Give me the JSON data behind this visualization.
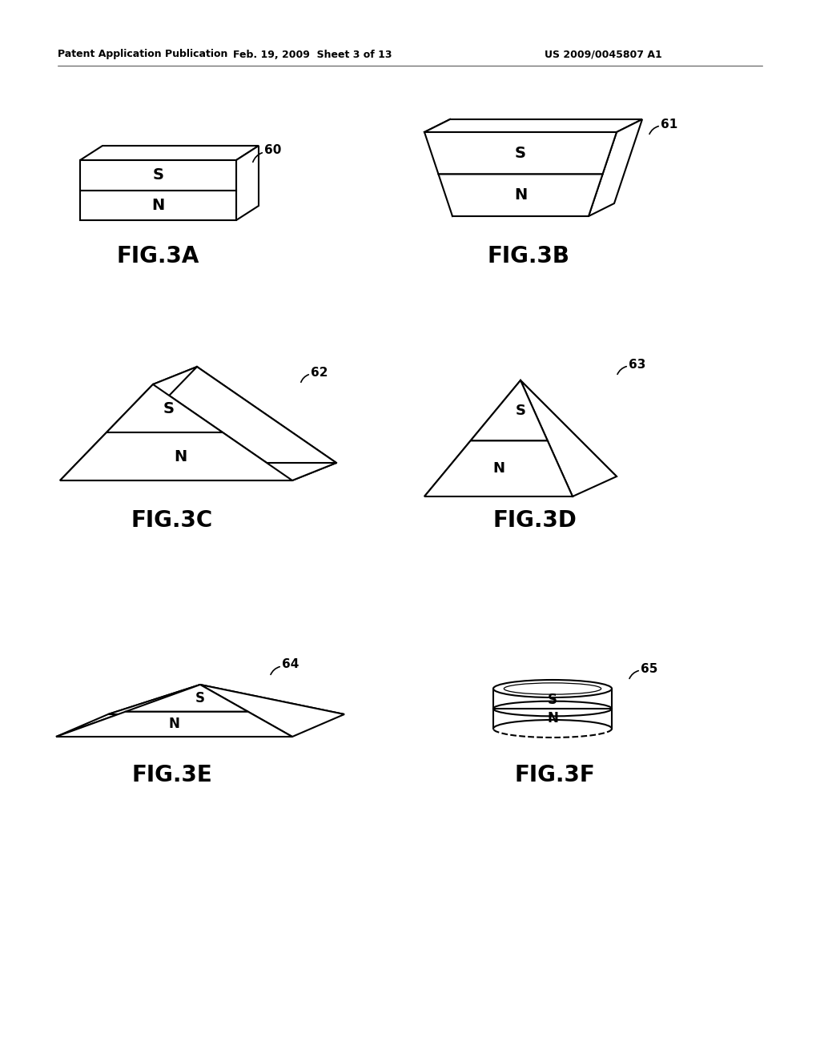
{
  "title_left": "Patent Application Publication",
  "title_mid": "Feb. 19, 2009  Sheet 3 of 13",
  "title_right": "US 2009/0045807 A1",
  "bg_color": "#ffffff",
  "line_color": "#000000",
  "figures": [
    {
      "label": "FIG.3A",
      "ref": "60"
    },
    {
      "label": "FIG.3B",
      "ref": "61"
    },
    {
      "label": "FIG.3C",
      "ref": "62"
    },
    {
      "label": "FIG.3D",
      "ref": "63"
    },
    {
      "label": "FIG.3E",
      "ref": "64"
    },
    {
      "label": "FIG.3F",
      "ref": "65"
    }
  ]
}
